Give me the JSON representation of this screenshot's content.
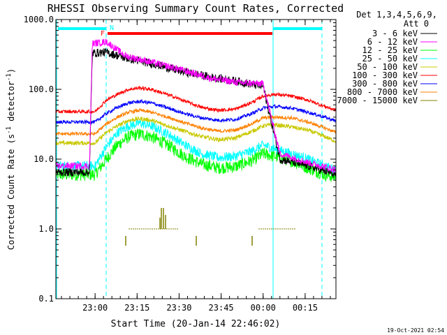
{
  "chart_data": {
    "type": "line",
    "title": "RHESSI Observing Summary Count Rates, Corrected",
    "xlabel": "Start Time (20-Jan-14 22:46:02)",
    "ylabel": "Corrected Count Rate (s",
    "ylabel_sup": "-1",
    "ylabel_mid": " detector",
    "ylabel_sup2": "-1",
    "ylabel_end": ")",
    "y_scale": "log",
    "ylim": [
      0.1,
      1000
    ],
    "x_unit": "minutes after 22:46:02",
    "xlim": [
      0,
      100
    ],
    "y_tick_labels": [
      "0.1",
      "1.0",
      "10.0",
      "100.0",
      "1000.0"
    ],
    "y_tick_values": [
      0.1,
      1,
      10,
      100,
      1000
    ],
    "x_tick_labels": [
      "23:00",
      "23:15",
      "23:30",
      "23:45",
      "00:00",
      "00:15"
    ],
    "x_tick_values": [
      14,
      29,
      44,
      59,
      74,
      89
    ],
    "legend_header": "Det 1,3,4,5,6,9,",
    "legend_subheader": "Att 0",
    "legend_placement": "right",
    "series": [
      {
        "name": "3 - 6 keV",
        "color": "#000000",
        "x": [
          0,
          12,
          13,
          18,
          25,
          35,
          45,
          55,
          65,
          74,
          80,
          90,
          100
        ],
        "y": [
          6.5,
          6.5,
          330,
          340,
          280,
          230,
          180,
          150,
          130,
          110,
          10,
          8,
          6
        ]
      },
      {
        "name": "6 - 12 keV",
        "color": "#ff00ff",
        "x": [
          0,
          12,
          13,
          18,
          25,
          35,
          45,
          55,
          65,
          74,
          80,
          90,
          100
        ],
        "y": [
          8,
          8,
          450,
          480,
          300,
          240,
          190,
          145,
          125,
          120,
          12,
          9,
          7
        ]
      },
      {
        "name": "12 - 25 keV",
        "color": "#00ff00",
        "x": [
          0,
          14,
          18,
          22,
          26,
          30,
          34,
          40,
          46,
          52,
          58,
          64,
          70,
          74,
          78,
          84,
          90,
          96,
          100
        ],
        "y": [
          6,
          6,
          10,
          16,
          21,
          23,
          21,
          16,
          11,
          8.5,
          7.5,
          7.8,
          9.5,
          12,
          11,
          9.5,
          7.5,
          6,
          5.5
        ]
      },
      {
        "name": "25 - 50 keV",
        "color": "#00ffff",
        "x": [
          0,
          14,
          18,
          22,
          26,
          30,
          34,
          40,
          46,
          52,
          58,
          64,
          70,
          74,
          78,
          84,
          90,
          96,
          100
        ],
        "y": [
          8,
          8,
          15,
          24,
          30,
          33,
          30,
          23,
          16,
          12,
          10.5,
          11,
          13,
          16,
          14,
          12,
          10,
          8,
          7
        ]
      },
      {
        "name": "50 - 100 keV",
        "color": "#c8c800",
        "x": [
          0,
          14,
          18,
          22,
          26,
          30,
          34,
          40,
          46,
          52,
          58,
          64,
          70,
          74,
          78,
          84,
          90,
          96,
          100
        ],
        "y": [
          17,
          17,
          24,
          30,
          36,
          38,
          36,
          30,
          25,
          21,
          19,
          20,
          25,
          30,
          31,
          29,
          26,
          21,
          18
        ]
      },
      {
        "name": "100 - 300 keV",
        "color": "#ff0000",
        "x": [
          0,
          14,
          18,
          22,
          26,
          30,
          34,
          40,
          46,
          52,
          58,
          64,
          70,
          74,
          78,
          84,
          90,
          96,
          100
        ],
        "y": [
          48,
          48,
          70,
          85,
          100,
          105,
          100,
          84,
          68,
          55,
          50,
          52,
          65,
          80,
          85,
          80,
          70,
          57,
          50
        ]
      },
      {
        "name": "300 - 800 keV",
        "color": "#0000ff",
        "x": [
          0,
          14,
          18,
          22,
          26,
          30,
          34,
          40,
          46,
          52,
          58,
          64,
          70,
          74,
          78,
          84,
          90,
          96,
          100
        ],
        "y": [
          34,
          34,
          45,
          55,
          64,
          67,
          64,
          54,
          45,
          39,
          36,
          37,
          45,
          54,
          57,
          54,
          47,
          40,
          35
        ]
      },
      {
        "name": "800 - 7000 keV",
        "color": "#ff8000",
        "x": [
          0,
          14,
          18,
          22,
          26,
          30,
          34,
          40,
          46,
          52,
          58,
          64,
          70,
          74,
          78,
          84,
          90,
          96,
          100
        ],
        "y": [
          23,
          23,
          32,
          40,
          47,
          50,
          47,
          40,
          33,
          28,
          25,
          26,
          32,
          39,
          40,
          39,
          34,
          28,
          24
        ]
      },
      {
        "name": "7000 - 15000 keV",
        "color": "#808000",
        "x": [],
        "y": []
      }
    ],
    "flags": [
      {
        "label": "F",
        "color": "#ff0000"
      },
      {
        "label": "N",
        "color": "#00ffff"
      }
    ],
    "footer": "19-Oct-2021 02:54"
  }
}
